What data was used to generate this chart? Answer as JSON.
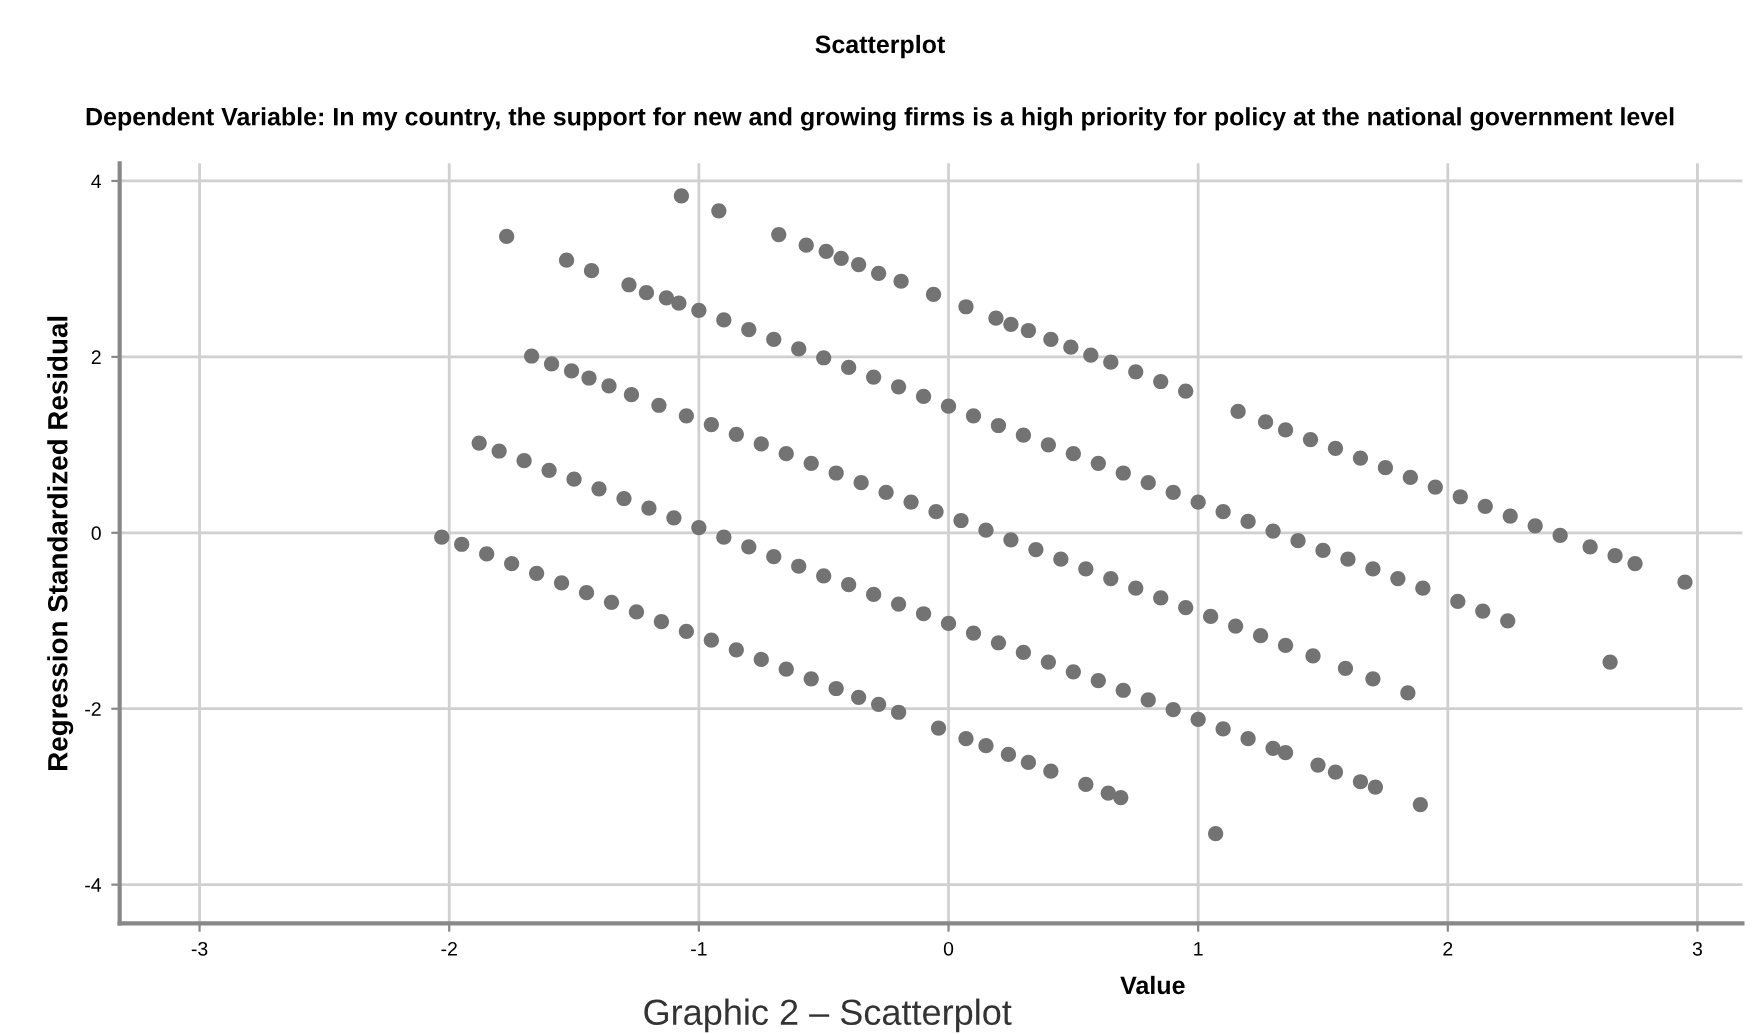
{
  "chart_data": {
    "type": "scatter",
    "title": "Scatterplot",
    "subtitle": "Dependent Variable: In my country, the support for new and growing firms is a high priority for policy at the national government level",
    "xlabel": "Value",
    "ylabel": "Regression Standardized Residual",
    "annotations": [
      "Graphic 2 – Scatterplot"
    ],
    "xlim": [
      -3.32,
      3.18
    ],
    "ylim": [
      -4.44,
      4.2
    ],
    "xticks": [
      -3,
      -2,
      -1,
      0,
      1,
      2,
      3
    ],
    "yticks": [
      -4,
      -2,
      0,
      2,
      4
    ],
    "grid": true,
    "marker": "circle",
    "series": [
      {
        "color": "#737373",
        "x": [
          -2.03,
          -1.95,
          -1.85,
          -1.75,
          -1.65,
          -1.55,
          -1.45,
          -1.35,
          -1.25,
          -1.15,
          -1.05,
          -0.95,
          -0.85,
          -0.75,
          -0.65,
          -0.55,
          -0.45,
          -0.36,
          -0.28,
          -0.2,
          -0.04,
          0.07,
          0.15,
          0.24,
          0.32,
          0.41,
          0.55,
          0.64,
          0.69
        ],
        "values": [
          -0.05,
          -0.13,
          -0.24,
          -0.35,
          -0.46,
          -0.57,
          -0.68,
          -0.79,
          -0.9,
          -1.01,
          -1.12,
          -1.22,
          -1.33,
          -1.44,
          -1.55,
          -1.66,
          -1.77,
          -1.87,
          -1.95,
          -2.04,
          -2.22,
          -2.34,
          -2.42,
          -2.52,
          -2.61,
          -2.71,
          -2.86,
          -2.96,
          -3.01
        ]
      },
      {
        "color": "#737373",
        "x": [
          -1.88,
          -1.8,
          -1.7,
          -1.6,
          -1.5,
          -1.4,
          -1.3,
          -1.2,
          -1.1,
          -1.0,
          -0.9,
          -0.8,
          -0.7,
          -0.6,
          -0.5,
          -0.4,
          -0.3,
          -0.2,
          -0.1,
          0,
          0.1,
          0.2,
          0.3,
          0.4,
          0.5,
          0.6,
          0.7,
          0.8,
          0.9,
          1.0,
          1.1,
          1.2,
          1.3,
          1.35,
          1.48,
          1.55,
          1.65,
          1.71,
          1.89
        ],
        "values": [
          1.02,
          0.93,
          0.82,
          0.71,
          0.61,
          0.5,
          0.39,
          0.28,
          0.17,
          0.06,
          -0.05,
          -0.16,
          -0.27,
          -0.38,
          -0.49,
          -0.59,
          -0.7,
          -0.81,
          -0.92,
          -1.03,
          -1.14,
          -1.25,
          -1.36,
          -1.47,
          -1.58,
          -1.68,
          -1.79,
          -1.9,
          -2.01,
          -2.12,
          -2.23,
          -2.34,
          -2.45,
          -2.5,
          -2.64,
          -2.72,
          -2.83,
          -2.89,
          -3.09
        ]
      },
      {
        "color": "#737373",
        "x": [
          -1.67,
          -1.59,
          -1.51,
          -1.44,
          -1.36,
          -1.27,
          -1.16,
          -1.05,
          -0.95,
          -0.85,
          -0.75,
          -0.65,
          -0.55,
          -0.45,
          -0.35,
          -0.25,
          -0.15,
          -0.05,
          0.05,
          0.15,
          0.25,
          0.35,
          0.45,
          0.55,
          0.65,
          0.75,
          0.85,
          0.95,
          1.05,
          1.15,
          1.25,
          1.35,
          1.46,
          1.59,
          1.7,
          1.84
        ],
        "values": [
          2.01,
          1.92,
          1.84,
          1.76,
          1.67,
          1.57,
          1.45,
          1.33,
          1.23,
          1.12,
          1.01,
          0.9,
          0.79,
          0.68,
          0.57,
          0.46,
          0.35,
          0.24,
          0.14,
          0.03,
          -0.08,
          -0.19,
          -0.3,
          -0.41,
          -0.52,
          -0.63,
          -0.74,
          -0.85,
          -0.95,
          -1.06,
          -1.17,
          -1.28,
          -1.4,
          -1.54,
          -1.66,
          -1.82
        ]
      },
      {
        "color": "#737373",
        "x": [
          -1.77,
          -1.53,
          -1.43,
          -1.28,
          -1.21,
          -1.13,
          -1.08,
          -1.0,
          -0.9,
          -0.8,
          -0.7,
          -0.6,
          -0.5,
          -0.4,
          -0.3,
          -0.2,
          -0.1,
          0,
          0.1,
          0.2,
          0.3,
          0.4,
          0.5,
          0.6,
          0.7,
          0.8,
          0.9,
          1.0,
          1.1,
          1.2,
          1.3,
          1.4,
          1.5,
          1.6,
          1.7,
          1.8,
          1.9,
          2.04,
          2.14,
          2.24
        ],
        "values": [
          3.37,
          3.1,
          2.98,
          2.82,
          2.73,
          2.67,
          2.61,
          2.53,
          2.42,
          2.31,
          2.2,
          2.09,
          1.99,
          1.88,
          1.77,
          1.66,
          1.55,
          1.44,
          1.33,
          1.22,
          1.11,
          1.0,
          0.9,
          0.79,
          0.68,
          0.57,
          0.46,
          0.35,
          0.24,
          0.13,
          0.02,
          -0.09,
          -0.2,
          -0.3,
          -0.41,
          -0.52,
          -0.63,
          -0.78,
          -0.89,
          -1.0
        ]
      },
      {
        "color": "#737373",
        "x": [
          -0.68,
          -0.57,
          -0.49,
          -0.43,
          -0.36,
          -0.28,
          -0.19,
          -0.06,
          0.07,
          0.19,
          0.25,
          0.32,
          0.41,
          0.49,
          0.57,
          0.65,
          0.75,
          0.85,
          0.95,
          1.16,
          1.27,
          1.35,
          1.45,
          1.55,
          1.65,
          1.75,
          1.85,
          1.95,
          2.05,
          2.15,
          2.25,
          2.35,
          2.45,
          2.57,
          2.67,
          2.75,
          2.95
        ],
        "values": [
          3.39,
          3.27,
          3.2,
          3.12,
          3.05,
          2.95,
          2.86,
          2.71,
          2.57,
          2.44,
          2.37,
          2.3,
          2.2,
          2.11,
          2.02,
          1.94,
          1.83,
          1.72,
          1.61,
          1.38,
          1.26,
          1.17,
          1.06,
          0.96,
          0.85,
          0.74,
          0.63,
          0.52,
          0.41,
          0.3,
          0.19,
          0.08,
          -0.03,
          -0.16,
          -0.26,
          -0.35,
          -0.56
        ]
      },
      {
        "color": "#737373",
        "x": [
          -1.07,
          -0.92,
          2.65,
          1.07
        ],
        "values": [
          3.83,
          3.66,
          -1.47,
          -3.42
        ]
      }
    ]
  }
}
